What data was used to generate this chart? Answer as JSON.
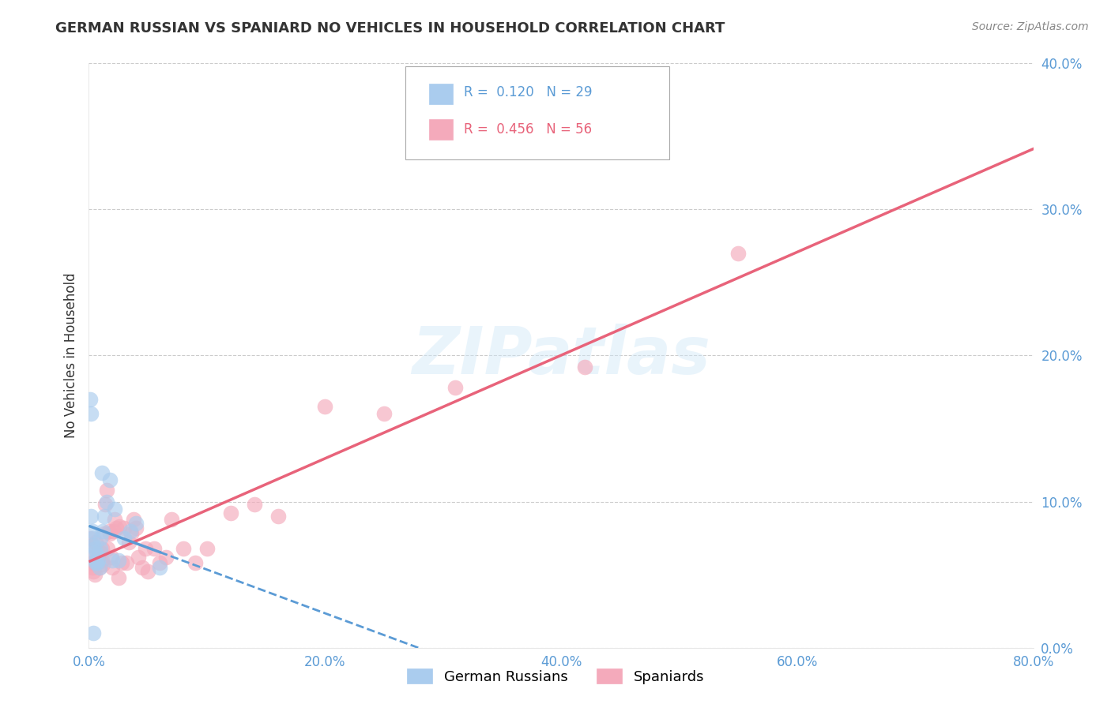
{
  "title": "GERMAN RUSSIAN VS SPANIARD NO VEHICLES IN HOUSEHOLD CORRELATION CHART",
  "source": "Source: ZipAtlas.com",
  "ylabel": "No Vehicles in Household",
  "legend_r1": "0.120",
  "legend_n1": "29",
  "legend_r2": "0.456",
  "legend_n2": "56",
  "xlim": [
    0.0,
    0.8
  ],
  "ylim": [
    0.0,
    0.4
  ],
  "xticks": [
    0.0,
    0.2,
    0.4,
    0.6,
    0.8
  ],
  "yticks": [
    0.0,
    0.1,
    0.2,
    0.3,
    0.4
  ],
  "color_blue": "#aaccee",
  "color_pink": "#f4aabb",
  "line_blue": "#5b9bd5",
  "line_pink": "#e8637a",
  "tick_color": "#5b9bd5",
  "background": "#ffffff",
  "grid_color": "#cccccc",
  "german_russian_x": [
    0.001,
    0.002,
    0.002,
    0.003,
    0.003,
    0.004,
    0.005,
    0.005,
    0.006,
    0.006,
    0.007,
    0.007,
    0.008,
    0.009,
    0.01,
    0.01,
    0.011,
    0.012,
    0.013,
    0.015,
    0.018,
    0.02,
    0.022,
    0.025,
    0.03,
    0.035,
    0.04,
    0.06,
    0.004
  ],
  "german_russian_y": [
    0.17,
    0.16,
    0.09,
    0.08,
    0.075,
    0.07,
    0.068,
    0.065,
    0.06,
    0.058,
    0.063,
    0.058,
    0.06,
    0.055,
    0.068,
    0.075,
    0.12,
    0.08,
    0.09,
    0.1,
    0.115,
    0.06,
    0.095,
    0.06,
    0.075,
    0.08,
    0.085,
    0.055,
    0.01
  ],
  "spaniard_x": [
    0.001,
    0.002,
    0.003,
    0.003,
    0.004,
    0.004,
    0.005,
    0.005,
    0.006,
    0.007,
    0.007,
    0.008,
    0.009,
    0.01,
    0.011,
    0.011,
    0.012,
    0.013,
    0.014,
    0.015,
    0.016,
    0.017,
    0.018,
    0.019,
    0.02,
    0.021,
    0.022,
    0.023,
    0.025,
    0.026,
    0.028,
    0.03,
    0.032,
    0.034,
    0.036,
    0.038,
    0.04,
    0.042,
    0.045,
    0.048,
    0.05,
    0.055,
    0.06,
    0.065,
    0.07,
    0.08,
    0.09,
    0.1,
    0.12,
    0.14,
    0.16,
    0.2,
    0.25,
    0.31,
    0.42,
    0.55
  ],
  "spaniard_y": [
    0.075,
    0.062,
    0.058,
    0.055,
    0.052,
    0.07,
    0.058,
    0.05,
    0.072,
    0.058,
    0.06,
    0.062,
    0.055,
    0.065,
    0.068,
    0.06,
    0.057,
    0.078,
    0.098,
    0.108,
    0.068,
    0.08,
    0.078,
    0.062,
    0.055,
    0.08,
    0.088,
    0.082,
    0.048,
    0.083,
    0.058,
    0.082,
    0.058,
    0.072,
    0.078,
    0.088,
    0.082,
    0.062,
    0.055,
    0.068,
    0.052,
    0.068,
    0.058,
    0.062,
    0.088,
    0.068,
    0.058,
    0.068,
    0.092,
    0.098,
    0.09,
    0.165,
    0.16,
    0.178,
    0.192,
    0.27
  ]
}
